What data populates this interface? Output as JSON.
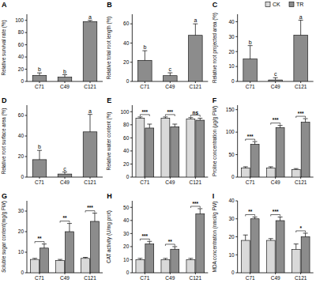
{
  "chart_data": [
    {
      "type": "bar",
      "title": "A",
      "y_label": "Relative survival rate (%)",
      "categories": [
        "C71",
        "C49",
        "C121"
      ],
      "values": [
        10,
        7,
        98
      ],
      "errors": [
        4,
        4,
        2
      ],
      "color": "#8c8c8c",
      "annotations": [
        "b",
        "b",
        "a"
      ],
      "ylim": [
        0,
        110
      ],
      "yticks": [
        0,
        20,
        40,
        60,
        80,
        100
      ]
    },
    {
      "type": "bar",
      "title": "B",
      "y_label": "Relative total root length (%)",
      "categories": [
        "C71",
        "C49",
        "C121"
      ],
      "values": [
        22,
        6,
        48
      ],
      "errors": [
        10,
        3,
        12
      ],
      "color": "#8c8c8c",
      "annotations": [
        "b",
        "c",
        "a"
      ],
      "ylim": [
        0,
        70
      ],
      "yticks": [
        0,
        20,
        40,
        60
      ]
    },
    {
      "type": "bar",
      "title": "C",
      "y_label": "Relative root projected area (%)",
      "categories": [
        "C71",
        "C49",
        "C121"
      ],
      "values": [
        15,
        1,
        31
      ],
      "errors": [
        9,
        1.5,
        10
      ],
      "color": "#8c8c8c",
      "annotations": [
        "b",
        "c",
        "a"
      ],
      "ylim": [
        0,
        45
      ],
      "yticks": [
        0,
        10,
        20,
        30,
        40
      ]
    },
    {
      "type": "bar",
      "title": "D",
      "y_label": "Relative root surface area (%)",
      "categories": [
        "C71",
        "C49",
        "C121"
      ],
      "values": [
        17,
        3,
        44
      ],
      "errors": [
        9,
        2,
        17
      ],
      "color": "#8c8c8c",
      "annotations": [
        "b",
        "c",
        "a"
      ],
      "ylim": [
        0,
        70
      ],
      "yticks": [
        0,
        20,
        40,
        60
      ]
    },
    {
      "type": "bar",
      "title": "E",
      "y_label": "Relative water content (%)",
      "categories": [
        "C71",
        "C49",
        "C121"
      ],
      "series": [
        {
          "name": "CK",
          "color": "#d9d9d9",
          "values": [
            90,
            90,
            89
          ],
          "errors": [
            2,
            2,
            2
          ]
        },
        {
          "name": "TR",
          "color": "#8c8c8c",
          "values": [
            75,
            77,
            87
          ],
          "errors": [
            6,
            4,
            3
          ]
        }
      ],
      "annotations": [
        "***",
        "***",
        "ns"
      ],
      "legend": "top-right",
      "ylim": [
        0,
        110
      ],
      "yticks": [
        0,
        20,
        40,
        60,
        80,
        100
      ]
    },
    {
      "type": "bar",
      "title": "F",
      "y_label": "Proline concentration (µg/g FW)",
      "categories": [
        "C71",
        "C49",
        "C121"
      ],
      "series": [
        {
          "color": "#d9d9d9",
          "values": [
            20,
            20,
            17
          ],
          "errors": [
            3,
            3,
            2
          ]
        },
        {
          "color": "#8c8c8c",
          "values": [
            73,
            110,
            122
          ],
          "errors": [
            6,
            5,
            8
          ]
        }
      ],
      "annotations": [
        "***",
        "***",
        "***"
      ],
      "ylim": [
        0,
        160
      ],
      "yticks": [
        0,
        50,
        100,
        150
      ]
    },
    {
      "type": "bar",
      "title": "G",
      "y_label": "Soluble sugar content(mg/g FW)",
      "categories": [
        "C71",
        "C49",
        "C121"
      ],
      "series": [
        {
          "color": "#d9d9d9",
          "values": [
            6.5,
            6,
            7
          ],
          "errors": [
            0.5,
            0.5,
            0.5
          ]
        },
        {
          "color": "#8c8c8c",
          "values": [
            12,
            20,
            25
          ],
          "errors": [
            2,
            4,
            4
          ]
        }
      ],
      "annotations": [
        "**",
        "**",
        "***"
      ],
      "ylim": [
        0,
        35
      ],
      "yticks": [
        0,
        10,
        20,
        30
      ]
    },
    {
      "type": "bar",
      "title": "H",
      "y_label": "CAT activity (U/mg prot)",
      "categories": [
        "C71",
        "C49",
        "C121"
      ],
      "series": [
        {
          "color": "#d9d9d9",
          "values": [
            10,
            10,
            10
          ],
          "errors": [
            1,
            1,
            1
          ]
        },
        {
          "color": "#8c8c8c",
          "values": [
            22,
            18,
            45
          ],
          "errors": [
            2,
            2,
            4
          ]
        }
      ],
      "annotations": [
        "***",
        "**",
        "***"
      ],
      "ylim": [
        0,
        55
      ],
      "yticks": [
        0,
        10,
        20,
        30,
        40,
        50
      ]
    },
    {
      "type": "bar",
      "title": "I",
      "y_label": "MDA concentration (nmol/g FW)",
      "categories": [
        "C71",
        "C49",
        "C121"
      ],
      "series": [
        {
          "color": "#d9d9d9",
          "values": [
            18,
            18,
            13
          ],
          "errors": [
            3,
            1,
            3
          ]
        },
        {
          "color": "#8c8c8c",
          "values": [
            30,
            29,
            20
          ],
          "errors": [
            1,
            2,
            2
          ]
        }
      ],
      "annotations": [
        "**",
        "***",
        "*"
      ],
      "ylim": [
        0,
        40
      ],
      "yticks": [
        0,
        10,
        20,
        30,
        40
      ]
    }
  ]
}
